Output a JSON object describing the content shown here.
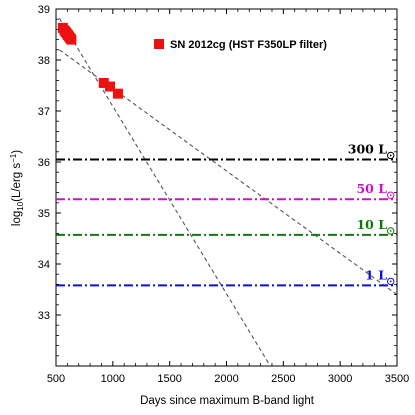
{
  "chart_data": {
    "type": "scatter",
    "xlabel": "Days since maximum B-band light",
    "ylabel": "log10(L/erg s−1)",
    "xlim": [
      500,
      3500
    ],
    "ylim": [
      32,
      39
    ],
    "x_ticks": [
      500,
      1000,
      1500,
      2000,
      2500,
      3000,
      3500
    ],
    "y_ticks": [
      33,
      34,
      35,
      36,
      37,
      38,
      39
    ],
    "legend": {
      "placement": "top-right",
      "label": "SN 2012cg (HST F350LP filter)"
    },
    "series": [
      {
        "name": "SN 2012cg (HST F350LP filter)",
        "marker": "square",
        "color": "#ee1111",
        "x": [
          560,
          575,
          585,
          595,
          605,
          615,
          625,
          635,
          920,
          975,
          1045
        ],
        "y": [
          38.63,
          38.58,
          38.55,
          38.52,
          38.49,
          38.46,
          38.43,
          38.4,
          37.55,
          37.48,
          37.34
        ]
      }
    ],
    "fit_lines": [
      {
        "style": "dashed",
        "color": "#555555",
        "points": [
          [
            530,
            38.82
          ],
          [
            2385,
            32.0
          ]
        ]
      },
      {
        "style": "dashed",
        "color": "#555555",
        "points": [
          [
            530,
            38.2
          ],
          [
            3500,
            33.4
          ]
        ]
      }
    ],
    "reference_lines": [
      {
        "label": "300 L",
        "y": 36.05,
        "color": "#000000"
      },
      {
        "label": "50 L",
        "y": 35.27,
        "color": "#cc11cc"
      },
      {
        "label": "10 L",
        "y": 34.57,
        "color": "#117711"
      },
      {
        "label": "1 L",
        "y": 33.58,
        "color": "#1111cc"
      }
    ]
  }
}
